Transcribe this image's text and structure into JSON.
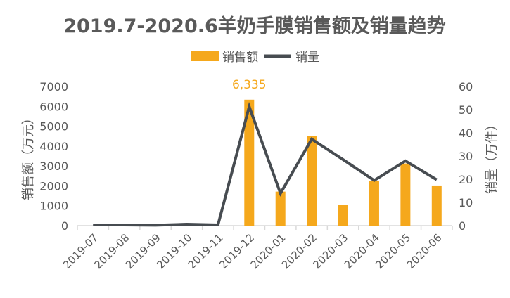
{
  "chart_data": {
    "type": "bar+line",
    "title": "2019.7-2020.6羊奶手膜销售额及销量趋势",
    "categories": [
      "2019-07",
      "2019-08",
      "2019-09",
      "2019-10",
      "2019-11",
      "2019-12",
      "2020-01",
      "2020-02",
      "2020-03",
      "2020-04",
      "2020-05",
      "2020-06"
    ],
    "series": [
      {
        "name": "销售额",
        "type": "bar",
        "axis": "left",
        "color": "#F5A81C",
        "values": [
          0,
          0,
          0,
          0,
          0,
          6335,
          1710,
          4495,
          1025,
          2240,
          3125,
          2017
        ]
      },
      {
        "name": "销量",
        "type": "line",
        "axis": "right",
        "color": "#474C51",
        "values": [
          0.3,
          0.3,
          0.2,
          0.6,
          0.3,
          51.3,
          13.9,
          37.3,
          28.5,
          19.5,
          27.9,
          19.8
        ]
      }
    ],
    "data_labels": [
      {
        "series": "销售额",
        "category": "2019-12",
        "text": "6,335"
      }
    ],
    "ylabel": "销售额（万元）",
    "y2label": "销量（万件）",
    "ylim": [
      0,
      7000
    ],
    "y2lim": [
      0,
      60
    ],
    "yticks": [
      "0",
      "1000",
      "2000",
      "3000",
      "4000",
      "5000",
      "6000",
      "7000"
    ],
    "y2ticks": [
      "0",
      "10",
      "20",
      "30",
      "40",
      "50",
      "60"
    ],
    "grid": false,
    "legend": "top-center"
  }
}
